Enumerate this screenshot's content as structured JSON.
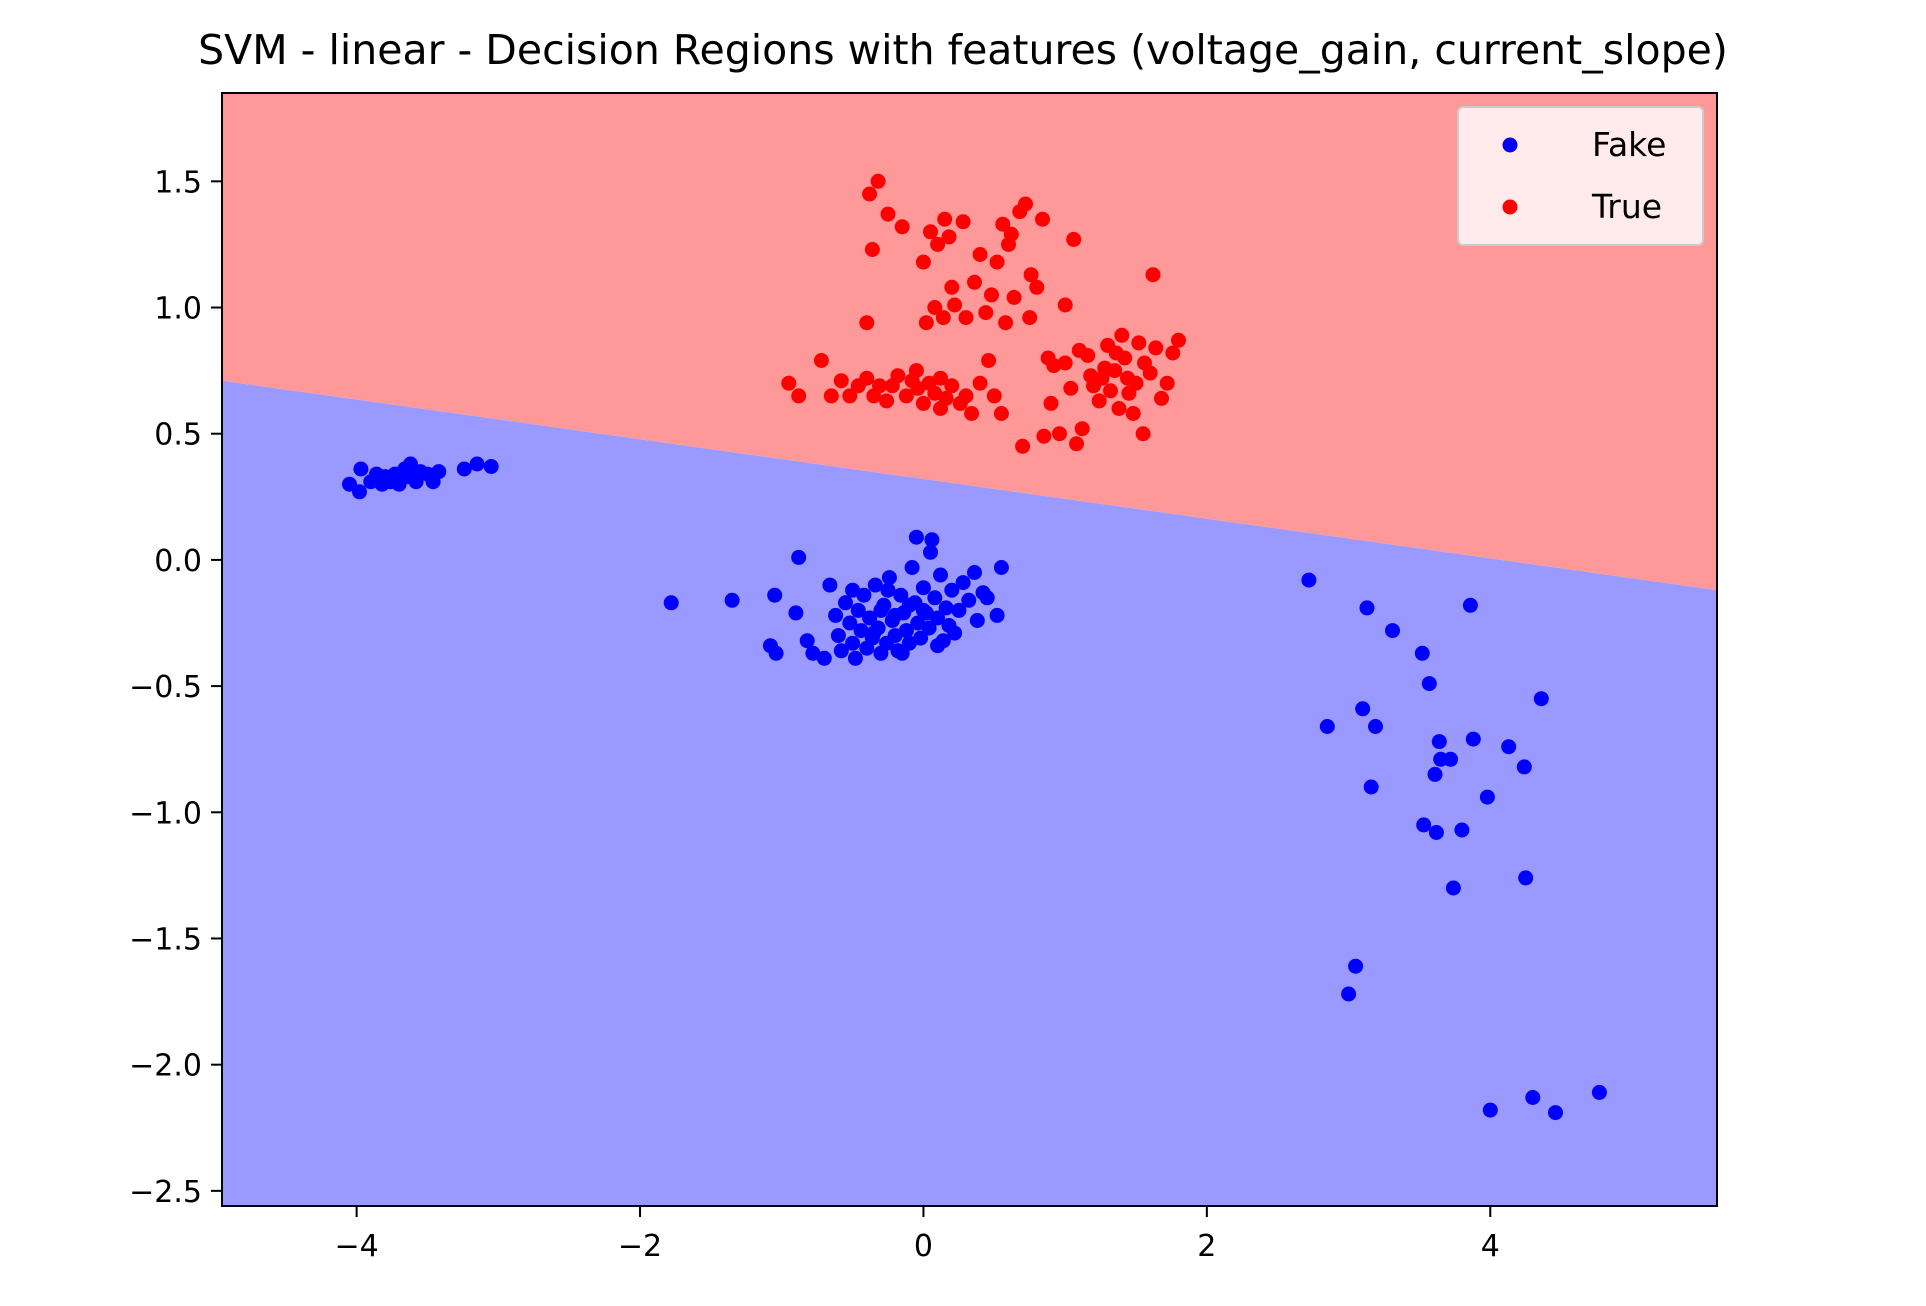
{
  "chart_data": {
    "type": "scatter",
    "title": "SVM - linear - Decision Regions with features (voltage_gain, current_slope)",
    "xlabel": "",
    "ylabel": "",
    "xlim": [
      -4.95,
      5.6
    ],
    "ylim": [
      -2.56,
      1.85
    ],
    "xticks": [
      -4,
      -2,
      0,
      2,
      4
    ],
    "yticks": [
      1.5,
      1.0,
      0.5,
      0.0,
      -0.5,
      -1.0,
      -1.5,
      -2.0,
      -2.5
    ],
    "xtick_labels": [
      "−4",
      "−2",
      "0",
      "2",
      "4"
    ],
    "ytick_labels": [
      "1.5",
      "1.0",
      "0.5",
      "0.0",
      "−0.5",
      "−1.0",
      "−1.5",
      "−2.0",
      "−2.5"
    ],
    "grid": false,
    "legend": {
      "placement": "top-right",
      "entries": [
        "Fake",
        "True"
      ]
    },
    "decision_boundary": {
      "x": [
        -4.95,
        5.6
      ],
      "y": [
        0.71,
        -0.12
      ]
    },
    "regions": {
      "upper": {
        "class": "True",
        "color": "#ff9999"
      },
      "lower": {
        "class": "Fake",
        "color": "#9999ff"
      }
    },
    "series": [
      {
        "name": "Fake",
        "color": "#0000ff",
        "points": [
          [
            -4.05,
            0.3
          ],
          [
            -3.98,
            0.27
          ],
          [
            -3.97,
            0.36
          ],
          [
            -3.9,
            0.31
          ],
          [
            -3.86,
            0.34
          ],
          [
            -3.82,
            0.3
          ],
          [
            -3.8,
            0.33
          ],
          [
            -3.76,
            0.31
          ],
          [
            -3.73,
            0.34
          ],
          [
            -3.7,
            0.3
          ],
          [
            -3.66,
            0.36
          ],
          [
            -3.64,
            0.33
          ],
          [
            -3.62,
            0.38
          ],
          [
            -3.58,
            0.31
          ],
          [
            -3.55,
            0.35
          ],
          [
            -3.5,
            0.34
          ],
          [
            -3.46,
            0.31
          ],
          [
            -3.42,
            0.35
          ],
          [
            -3.24,
            0.36
          ],
          [
            -3.15,
            0.38
          ],
          [
            -3.05,
            0.37
          ],
          [
            -1.78,
            -0.17
          ],
          [
            -1.35,
            -0.16
          ],
          [
            -1.05,
            -0.14
          ],
          [
            -1.08,
            -0.34
          ],
          [
            -1.04,
            -0.37
          ],
          [
            -0.9,
            -0.21
          ],
          [
            -0.88,
            0.01
          ],
          [
            -0.82,
            -0.32
          ],
          [
            -0.78,
            -0.37
          ],
          [
            -0.7,
            -0.39
          ],
          [
            -0.66,
            -0.1
          ],
          [
            -0.62,
            -0.22
          ],
          [
            -0.6,
            -0.3
          ],
          [
            -0.58,
            -0.36
          ],
          [
            -0.55,
            -0.17
          ],
          [
            -0.52,
            -0.25
          ],
          [
            -0.5,
            -0.33
          ],
          [
            -0.48,
            -0.39
          ],
          [
            -0.46,
            -0.2
          ],
          [
            -0.44,
            -0.28
          ],
          [
            -0.42,
            -0.14
          ],
          [
            -0.4,
            -0.35
          ],
          [
            -0.38,
            -0.23
          ],
          [
            -0.36,
            -0.31
          ],
          [
            -0.34,
            -0.1
          ],
          [
            -0.32,
            -0.27
          ],
          [
            -0.3,
            -0.37
          ],
          [
            -0.28,
            -0.18
          ],
          [
            -0.26,
            -0.33
          ],
          [
            -0.24,
            -0.07
          ],
          [
            -0.22,
            -0.24
          ],
          [
            -0.2,
            -0.3
          ],
          [
            -0.18,
            -0.36
          ],
          [
            -0.16,
            -0.14
          ],
          [
            -0.14,
            -0.21
          ],
          [
            -0.12,
            -0.28
          ],
          [
            -0.1,
            -0.33
          ],
          [
            -0.08,
            -0.03
          ],
          [
            -0.06,
            -0.17
          ],
          [
            -0.04,
            -0.25
          ],
          [
            -0.02,
            -0.31
          ],
          [
            0.0,
            -0.11
          ],
          [
            0.02,
            -0.21
          ],
          [
            0.04,
            -0.27
          ],
          [
            0.06,
            0.08
          ],
          [
            0.08,
            -0.15
          ],
          [
            0.1,
            -0.23
          ],
          [
            0.12,
            -0.06
          ],
          [
            0.14,
            -0.32
          ],
          [
            0.16,
            -0.19
          ],
          [
            0.18,
            -0.26
          ],
          [
            -0.05,
            0.09
          ],
          [
            0.05,
            0.03
          ],
          [
            0.2,
            -0.12
          ],
          [
            0.22,
            -0.29
          ],
          [
            0.25,
            -0.2
          ],
          [
            0.28,
            -0.09
          ],
          [
            0.32,
            -0.16
          ],
          [
            0.36,
            -0.05
          ],
          [
            0.42,
            -0.13
          ],
          [
            0.38,
            -0.24
          ],
          [
            0.52,
            -0.22
          ],
          [
            0.55,
            -0.03
          ],
          [
            0.45,
            -0.15
          ],
          [
            -0.15,
            -0.37
          ],
          [
            -0.25,
            -0.12
          ],
          [
            -0.35,
            -0.29
          ],
          [
            0.1,
            -0.34
          ],
          [
            -0.5,
            -0.12
          ],
          [
            0.0,
            -0.2
          ],
          [
            -0.1,
            -0.18
          ],
          [
            -0.2,
            -0.22
          ],
          [
            -0.3,
            -0.2
          ],
          [
            2.72,
            -0.08
          ],
          [
            2.85,
            -0.66
          ],
          [
            3.05,
            -1.61
          ],
          [
            3.0,
            -1.72
          ],
          [
            3.1,
            -0.59
          ],
          [
            3.13,
            -0.19
          ],
          [
            3.16,
            -0.9
          ],
          [
            3.19,
            -0.66
          ],
          [
            3.31,
            -0.28
          ],
          [
            3.52,
            -0.37
          ],
          [
            3.53,
            -1.05
          ],
          [
            3.57,
            -0.49
          ],
          [
            3.61,
            -0.85
          ],
          [
            3.62,
            -1.08
          ],
          [
            3.64,
            -0.72
          ],
          [
            3.65,
            -0.79
          ],
          [
            3.72,
            -0.79
          ],
          [
            3.74,
            -1.3
          ],
          [
            3.8,
            -1.07
          ],
          [
            3.86,
            -0.18
          ],
          [
            3.88,
            -0.71
          ],
          [
            3.98,
            -0.94
          ],
          [
            4.0,
            -2.18
          ],
          [
            4.13,
            -0.74
          ],
          [
            4.24,
            -0.82
          ],
          [
            4.25,
            -1.26
          ],
          [
            4.3,
            -2.13
          ],
          [
            4.36,
            -0.55
          ],
          [
            4.46,
            -2.19
          ],
          [
            4.77,
            -2.11
          ]
        ]
      },
      {
        "name": "True",
        "color": "#ff0000",
        "points": [
          [
            -0.95,
            0.7
          ],
          [
            -0.88,
            0.65
          ],
          [
            -0.72,
            0.79
          ],
          [
            -0.65,
            0.65
          ],
          [
            -0.58,
            0.71
          ],
          [
            -0.52,
            0.65
          ],
          [
            -0.46,
            0.69
          ],
          [
            -0.4,
            0.94
          ],
          [
            -0.4,
            0.72
          ],
          [
            -0.36,
            1.23
          ],
          [
            -0.35,
            0.65
          ],
          [
            -0.31,
            0.69
          ],
          [
            -0.38,
            1.45
          ],
          [
            -0.32,
            1.5
          ],
          [
            -0.26,
            0.63
          ],
          [
            -0.22,
            0.69
          ],
          [
            -0.18,
            0.73
          ],
          [
            -0.12,
            0.65
          ],
          [
            -0.08,
            0.71
          ],
          [
            -0.04,
            0.68
          ],
          [
            0.0,
            0.62
          ],
          [
            0.04,
            0.7
          ],
          [
            0.08,
            0.66
          ],
          [
            0.12,
            0.72
          ],
          [
            0.16,
            0.64
          ],
          [
            0.2,
            0.69
          ],
          [
            -0.25,
            1.37
          ],
          [
            -0.15,
            1.32
          ],
          [
            0.0,
            1.18
          ],
          [
            0.05,
            1.3
          ],
          [
            0.1,
            1.25
          ],
          [
            0.15,
            1.35
          ],
          [
            0.2,
            1.08
          ],
          [
            0.02,
            0.94
          ],
          [
            0.08,
            1.0
          ],
          [
            0.14,
            0.96
          ],
          [
            0.22,
            1.01
          ],
          [
            0.26,
            0.62
          ],
          [
            0.3,
            0.65
          ],
          [
            0.34,
            0.58
          ],
          [
            0.4,
            0.7
          ],
          [
            0.46,
            0.79
          ],
          [
            0.48,
            1.05
          ],
          [
            0.52,
            1.18
          ],
          [
            0.56,
            1.33
          ],
          [
            0.6,
            1.25
          ],
          [
            0.64,
            1.04
          ],
          [
            0.68,
            1.38
          ],
          [
            0.72,
            1.41
          ],
          [
            0.76,
            1.13
          ],
          [
            0.8,
            1.08
          ],
          [
            0.84,
            1.35
          ],
          [
            0.88,
            0.8
          ],
          [
            0.92,
            0.77
          ],
          [
            0.96,
            0.5
          ],
          [
            1.0,
            1.01
          ],
          [
            1.04,
            0.68
          ],
          [
            1.08,
            0.46
          ],
          [
            1.12,
            0.52
          ],
          [
            1.16,
            0.81
          ],
          [
            1.2,
            0.69
          ],
          [
            1.24,
            0.63
          ],
          [
            1.28,
            0.76
          ],
          [
            1.32,
            0.67
          ],
          [
            1.36,
            0.82
          ],
          [
            1.4,
            0.89
          ],
          [
            1.44,
            0.72
          ],
          [
            1.48,
            0.58
          ],
          [
            1.52,
            0.86
          ],
          [
            1.56,
            0.78
          ],
          [
            1.6,
            0.74
          ],
          [
            1.64,
            0.84
          ],
          [
            1.68,
            0.64
          ],
          [
            1.72,
            0.7
          ],
          [
            1.76,
            0.82
          ],
          [
            1.8,
            0.87
          ],
          [
            1.62,
            1.13
          ],
          [
            1.06,
            1.27
          ],
          [
            0.7,
            0.45
          ],
          [
            0.55,
            0.58
          ],
          [
            0.36,
            1.1
          ],
          [
            0.3,
            0.96
          ],
          [
            0.44,
            0.98
          ],
          [
            0.58,
            0.94
          ],
          [
            0.75,
            0.96
          ],
          [
            0.9,
            0.62
          ],
          [
            1.35,
            0.75
          ],
          [
            1.45,
            0.66
          ],
          [
            1.3,
            0.85
          ],
          [
            1.42,
            0.8
          ],
          [
            1.5,
            0.7
          ],
          [
            1.38,
            0.6
          ],
          [
            1.55,
            0.5
          ],
          [
            1.1,
            0.83
          ],
          [
            1.18,
            0.73
          ],
          [
            1.26,
            0.72
          ],
          [
            0.85,
            0.49
          ],
          [
            1.0,
            0.78
          ],
          [
            0.62,
            1.29
          ],
          [
            0.4,
            1.21
          ],
          [
            0.28,
            1.34
          ],
          [
            0.18,
            1.28
          ],
          [
            -0.05,
            0.75
          ],
          [
            0.12,
            0.6
          ],
          [
            0.5,
            0.65
          ]
        ]
      }
    ]
  }
}
